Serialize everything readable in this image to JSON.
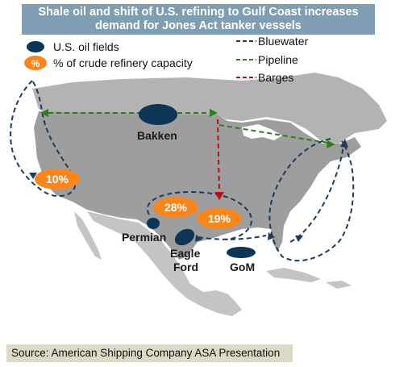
{
  "title": {
    "line1": "Shale oil and shift of U.S. refining to Gulf Coast increases",
    "line2": "demand for Jones Act tanker vessels"
  },
  "legend": {
    "oil_fields": "U.S. oil fields",
    "capacity_marker": "%",
    "capacity": "% of crude refinery capacity",
    "bluewater": "Bluewater",
    "pipeline": "Pipeline",
    "barges": "Barges"
  },
  "colors": {
    "title_bg": "#7f9eb4",
    "oil_field": "#0e3556",
    "capacity_bubble": "#f7861e",
    "bluewater": "#1f3a5a",
    "pipeline": "#2e7d1c",
    "barges": "#b01217",
    "land": "#b3b3b3",
    "source_bg": "#dcd9c6"
  },
  "oil_fields": [
    "Bakken",
    "Permian",
    "Eagle",
    "Ford",
    "GoM"
  ],
  "capacity": {
    "west_coast": "10%",
    "gulf_texas": "28%",
    "gulf_louisiana": "19%"
  },
  "source": "Source: American Shipping Company ASA Presentation"
}
